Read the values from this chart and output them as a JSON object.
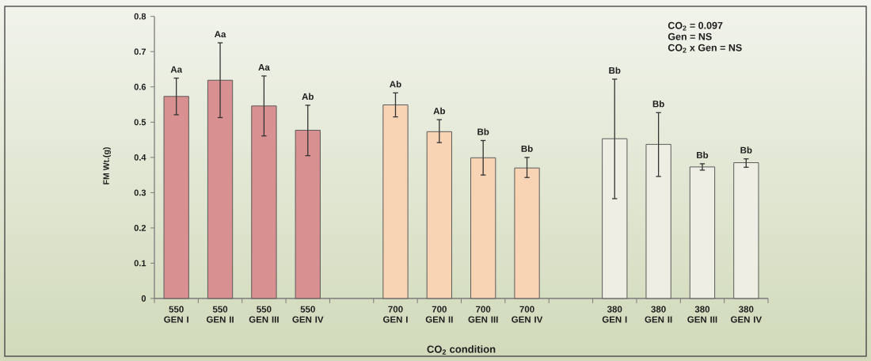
{
  "chart_data": {
    "type": "bar",
    "categories": [
      "550 GEN I",
      "550 GEN II",
      "550 GEN III",
      "550 GEN IV",
      null,
      "700 GEN I",
      "700 GEN II",
      "700 GEN III",
      "700 GEN IV",
      null,
      "380 GEN I",
      "380 GEN II",
      "380 GEN III",
      "380 GEN IV"
    ],
    "values": [
      0.573,
      0.619,
      0.546,
      0.477,
      null,
      0.549,
      0.473,
      0.399,
      0.37,
      null,
      0.453,
      0.437,
      0.373,
      0.385
    ],
    "errors": [
      [
        0.521,
        0.625
      ],
      [
        0.513,
        0.725
      ],
      [
        0.461,
        0.631
      ],
      [
        0.405,
        0.548
      ],
      null,
      [
        0.515,
        0.583
      ],
      [
        0.442,
        0.507
      ],
      [
        0.35,
        0.448
      ],
      [
        0.343,
        0.4
      ],
      null,
      [
        0.283,
        0.622
      ],
      [
        0.346,
        0.527
      ],
      [
        0.364,
        0.382
      ],
      [
        0.372,
        0.396
      ]
    ],
    "colors": [
      "#d99090",
      "#d99090",
      "#d99090",
      "#d99090",
      null,
      "#f9d4b4",
      "#f9d4b4",
      "#f9d4b4",
      "#f9d4b4",
      null,
      "#eeeee4",
      "#eeeee4",
      "#eeeee4",
      "#eeeee4"
    ],
    "xlabel": "CO$_{2}$ condition",
    "ylabel": "FM Wt.(g)",
    "ylim": [
      0,
      0.8
    ],
    "yticks": [
      0,
      0.1,
      0.2,
      0.3,
      0.4,
      0.5,
      0.6,
      0.7,
      0.8
    ],
    "annotations": [
      "CO$_{2}$ = 0.097",
      "Gen = NS",
      "CO$_{2}$ x Gen = NS",
      {
        "text": "Aa",
        "x": "550 GEN I",
        "y": 0.625
      },
      {
        "text": "Aa",
        "x": "550 GEN II",
        "y": 0.725
      },
      {
        "text": "Aa",
        "x": "550 GEN III",
        "y": 0.631
      },
      {
        "text": "Ab",
        "x": "550 GEN IV",
        "y": 0.548
      },
      {
        "text": "Ab",
        "x": "700 GEN I",
        "y": 0.583
      },
      {
        "text": "Ab",
        "x": "700 GEN II",
        "y": 0.507
      },
      {
        "text": "Bb",
        "x": "700 GEN III",
        "y": 0.448
      },
      {
        "text": "Bb",
        "x": "700 GEN IV",
        "y": 0.4
      },
      {
        "text": "Bb",
        "x": "380 GEN I",
        "y": 0.622
      },
      {
        "text": "Bb",
        "x": "380 GEN II",
        "y": 0.527
      },
      {
        "text": "Bb",
        "x": "380 GEN III",
        "y": 0.382
      },
      {
        "text": "Bb",
        "x": "380 GEN IV",
        "y": 0.396
      }
    ]
  }
}
